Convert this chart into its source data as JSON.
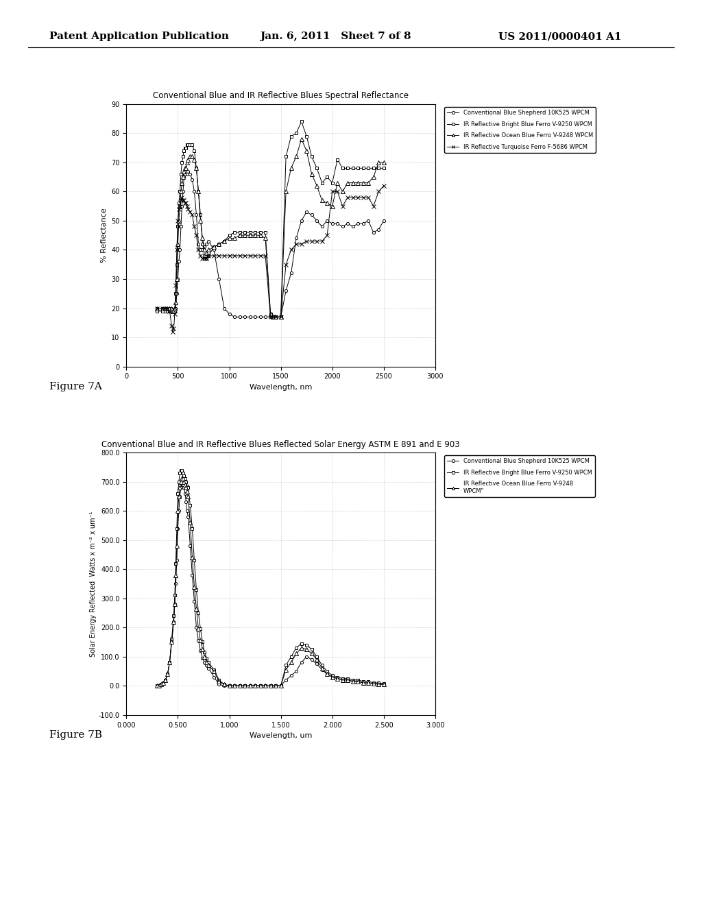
{
  "header_left": "Patent Application Publication",
  "header_center": "Jan. 6, 2011   Sheet 7 of 8",
  "header_right": "US 2011/0000401 A1",
  "fig7a": {
    "title": "Conventional Blue and IR Reflective Blues Spectral Reflectance",
    "xlabel": "Wavelength, nm",
    "ylabel": "% Reflectance",
    "xlim": [
      0,
      3000
    ],
    "ylim": [
      0,
      90
    ],
    "yticks": [
      0,
      10,
      20,
      30,
      40,
      50,
      60,
      70,
      80,
      90
    ],
    "xticks": [
      0,
      500,
      1000,
      1500,
      2000,
      2500,
      3000
    ],
    "caption": "Figure 7A",
    "series": [
      {
        "label": "Conventional Blue Shepherd 10K525 WPCM",
        "marker": "o",
        "x": [
          300,
          350,
          380,
          400,
          420,
          440,
          450,
          460,
          470,
          480,
          490,
          500,
          510,
          520,
          530,
          540,
          550,
          560,
          570,
          580,
          590,
          600,
          620,
          640,
          660,
          680,
          700,
          720,
          740,
          760,
          780,
          800,
          850,
          900,
          950,
          1000,
          1050,
          1100,
          1150,
          1200,
          1250,
          1300,
          1350,
          1400,
          1420,
          1450,
          1500,
          1550,
          1600,
          1650,
          1700,
          1750,
          1800,
          1850,
          1900,
          1950,
          2000,
          2050,
          2100,
          2150,
          2200,
          2250,
          2300,
          2350,
          2400,
          2450,
          2500
        ],
        "y": [
          20,
          20,
          19,
          19,
          20,
          20,
          19,
          19,
          20,
          20,
          25,
          30,
          36,
          40,
          48,
          55,
          60,
          65,
          66,
          67,
          66,
          67,
          66,
          64,
          60,
          52,
          42,
          40,
          40,
          41,
          42,
          43,
          40,
          30,
          20,
          18,
          17,
          17,
          17,
          17,
          17,
          17,
          17,
          17,
          17,
          17,
          17,
          26,
          32,
          44,
          50,
          53,
          52,
          50,
          48,
          50,
          49,
          49,
          48,
          49,
          48,
          49,
          49,
          50,
          46,
          47,
          50
        ]
      },
      {
        "label": "IR Reflective Bright Blue Ferro V-9250 WPCM",
        "marker": "s",
        "x": [
          300,
          350,
          380,
          400,
          420,
          440,
          450,
          460,
          470,
          480,
          490,
          500,
          510,
          520,
          530,
          540,
          550,
          560,
          570,
          580,
          590,
          600,
          620,
          640,
          660,
          680,
          700,
          720,
          740,
          760,
          780,
          800,
          850,
          900,
          950,
          1000,
          1050,
          1100,
          1150,
          1200,
          1250,
          1300,
          1350,
          1400,
          1420,
          1450,
          1500,
          1550,
          1600,
          1650,
          1700,
          1750,
          1800,
          1850,
          1900,
          1950,
          2000,
          2050,
          2100,
          2150,
          2200,
          2250,
          2300,
          2350,
          2400,
          2450,
          2500
        ],
        "y": [
          19,
          19,
          19,
          19,
          19,
          19,
          19,
          19,
          19,
          25,
          35,
          48,
          56,
          60,
          66,
          70,
          72,
          74,
          75,
          75,
          76,
          76,
          76,
          76,
          74,
          68,
          60,
          52,
          42,
          38,
          37,
          38,
          41,
          42,
          43,
          45,
          46,
          46,
          46,
          46,
          46,
          46,
          46,
          18,
          17,
          17,
          17,
          72,
          79,
          80,
          84,
          79,
          72,
          68,
          63,
          65,
          63,
          71,
          68,
          68,
          68,
          68,
          68,
          68,
          68,
          68,
          68
        ]
      },
      {
        "label": "IR Reflective Ocean Blue Ferro V-9248 WPCM",
        "marker": "^",
        "x": [
          300,
          350,
          380,
          400,
          420,
          440,
          450,
          460,
          470,
          480,
          490,
          500,
          510,
          520,
          530,
          540,
          550,
          560,
          570,
          580,
          590,
          600,
          620,
          640,
          660,
          680,
          700,
          720,
          740,
          760,
          780,
          800,
          850,
          900,
          950,
          1000,
          1050,
          1100,
          1150,
          1200,
          1250,
          1300,
          1350,
          1400,
          1420,
          1450,
          1500,
          1550,
          1600,
          1650,
          1700,
          1750,
          1800,
          1850,
          1900,
          1950,
          2000,
          2050,
          2100,
          2150,
          2200,
          2250,
          2300,
          2350,
          2400,
          2450,
          2500
        ],
        "y": [
          20,
          20,
          20,
          20,
          20,
          20,
          19,
          19,
          20,
          22,
          30,
          42,
          50,
          55,
          60,
          63,
          65,
          67,
          68,
          68,
          70,
          71,
          72,
          72,
          71,
          68,
          60,
          50,
          44,
          40,
          39,
          40,
          41,
          42,
          43,
          44,
          44,
          45,
          45,
          45,
          45,
          45,
          44,
          18,
          17,
          17,
          17,
          60,
          68,
          72,
          78,
          74,
          66,
          62,
          57,
          56,
          55,
          63,
          60,
          63,
          63,
          63,
          63,
          63,
          65,
          70,
          70
        ]
      },
      {
        "label": "IR Reflective Turquoise Ferro F-5686 WPCM",
        "marker": "x",
        "x": [
          300,
          350,
          380,
          400,
          420,
          440,
          450,
          460,
          470,
          480,
          490,
          500,
          510,
          520,
          530,
          540,
          550,
          560,
          570,
          580,
          590,
          600,
          620,
          640,
          660,
          680,
          700,
          720,
          740,
          760,
          780,
          800,
          850,
          900,
          950,
          1000,
          1050,
          1100,
          1150,
          1200,
          1250,
          1300,
          1350,
          1400,
          1420,
          1450,
          1500,
          1550,
          1600,
          1650,
          1700,
          1750,
          1800,
          1850,
          1900,
          1950,
          2000,
          2050,
          2100,
          2150,
          2200,
          2250,
          2300,
          2350,
          2400,
          2450,
          2500
        ],
        "y": [
          20,
          20,
          20,
          20,
          19,
          14,
          12,
          13,
          18,
          28,
          40,
          50,
          54,
          55,
          57,
          58,
          57,
          57,
          56,
          56,
          55,
          54,
          53,
          52,
          48,
          45,
          40,
          38,
          37,
          37,
          37,
          38,
          38,
          38,
          38,
          38,
          38,
          38,
          38,
          38,
          38,
          38,
          38,
          17,
          17,
          17,
          17,
          35,
          40,
          42,
          42,
          43,
          43,
          43,
          43,
          45,
          60,
          60,
          55,
          58,
          58,
          58,
          58,
          58,
          55,
          60,
          62
        ]
      }
    ]
  },
  "fig7b": {
    "title": "Conventional Blue and IR Reflective Blues Reflected Solar Energy ASTM E 891 and E 903",
    "xlabel": "Wavelength, um",
    "ylabel": "Solar Energy Reflected  Watts x m⁻² x um⁻¹",
    "xlim": [
      0.0,
      3.0
    ],
    "ylim": [
      -100.0,
      800.0
    ],
    "yticks": [
      -100.0,
      0.0,
      100.0,
      200.0,
      300.0,
      400.0,
      500.0,
      600.0,
      700.0,
      800.0
    ],
    "xticks": [
      0.0,
      0.5,
      1.0,
      1.5,
      2.0,
      2.5,
      3.0
    ],
    "caption": "Figure 7B",
    "series": [
      {
        "label": "Conventional Blue Shepherd 10K525 WPCM",
        "marker": "o",
        "x": [
          0.3,
          0.32,
          0.34,
          0.36,
          0.38,
          0.4,
          0.42,
          0.44,
          0.46,
          0.47,
          0.48,
          0.49,
          0.5,
          0.51,
          0.52,
          0.53,
          0.54,
          0.55,
          0.56,
          0.57,
          0.58,
          0.59,
          0.6,
          0.62,
          0.64,
          0.66,
          0.68,
          0.7,
          0.72,
          0.74,
          0.76,
          0.78,
          0.8,
          0.85,
          0.9,
          0.95,
          1.0,
          1.05,
          1.1,
          1.15,
          1.2,
          1.25,
          1.3,
          1.35,
          1.4,
          1.45,
          1.5,
          1.55,
          1.6,
          1.65,
          1.7,
          1.75,
          1.8,
          1.85,
          1.9,
          1.95,
          2.0,
          2.05,
          2.1,
          2.15,
          2.2,
          2.25,
          2.3,
          2.35,
          2.4,
          2.45,
          2.5
        ],
        "y": [
          0,
          0,
          5,
          10,
          20,
          40,
          80,
          150,
          220,
          280,
          350,
          430,
          540,
          600,
          650,
          680,
          700,
          690,
          680,
          660,
          630,
          600,
          580,
          480,
          380,
          290,
          200,
          155,
          120,
          95,
          80,
          70,
          60,
          30,
          5,
          0,
          0,
          0,
          0,
          0,
          0,
          0,
          0,
          0,
          0,
          0,
          0,
          20,
          35,
          50,
          80,
          100,
          90,
          75,
          55,
          40,
          30,
          25,
          20,
          20,
          15,
          15,
          10,
          10,
          8,
          5,
          5
        ]
      },
      {
        "label": "IR Reflective Bright Blue Ferro V-9250 WPCM",
        "marker": "s",
        "x": [
          0.3,
          0.32,
          0.34,
          0.36,
          0.38,
          0.4,
          0.42,
          0.44,
          0.46,
          0.47,
          0.48,
          0.49,
          0.5,
          0.51,
          0.52,
          0.53,
          0.54,
          0.55,
          0.56,
          0.57,
          0.58,
          0.59,
          0.6,
          0.62,
          0.64,
          0.66,
          0.68,
          0.7,
          0.72,
          0.74,
          0.76,
          0.78,
          0.8,
          0.85,
          0.9,
          0.95,
          1.0,
          1.05,
          1.1,
          1.15,
          1.2,
          1.25,
          1.3,
          1.35,
          1.4,
          1.45,
          1.5,
          1.55,
          1.6,
          1.65,
          1.7,
          1.75,
          1.8,
          1.85,
          1.9,
          1.95,
          2.0,
          2.05,
          2.1,
          2.15,
          2.2,
          2.25,
          2.3,
          2.35,
          2.4,
          2.45,
          2.5
        ],
        "y": [
          0,
          0,
          5,
          10,
          20,
          40,
          80,
          160,
          240,
          310,
          420,
          540,
          660,
          700,
          730,
          740,
          740,
          730,
          720,
          710,
          700,
          685,
          680,
          620,
          540,
          430,
          330,
          250,
          195,
          150,
          115,
          95,
          80,
          55,
          20,
          5,
          0,
          0,
          0,
          0,
          0,
          0,
          0,
          0,
          0,
          0,
          0,
          70,
          100,
          130,
          145,
          140,
          125,
          100,
          70,
          50,
          35,
          30,
          25,
          25,
          20,
          20,
          15,
          15,
          10,
          10,
          8
        ]
      },
      {
        "label": "IR Reflective Ocean Blue Ferro V-9248\nWPCM\"",
        "marker": "^",
        "x": [
          0.3,
          0.32,
          0.34,
          0.36,
          0.38,
          0.4,
          0.42,
          0.44,
          0.46,
          0.47,
          0.48,
          0.49,
          0.5,
          0.51,
          0.52,
          0.53,
          0.54,
          0.55,
          0.56,
          0.57,
          0.58,
          0.59,
          0.6,
          0.62,
          0.64,
          0.66,
          0.68,
          0.7,
          0.72,
          0.74,
          0.76,
          0.78,
          0.8,
          0.85,
          0.9,
          0.95,
          1.0,
          1.05,
          1.1,
          1.15,
          1.2,
          1.25,
          1.3,
          1.35,
          1.4,
          1.45,
          1.5,
          1.55,
          1.6,
          1.65,
          1.7,
          1.75,
          1.8,
          1.85,
          1.9,
          1.95,
          2.0,
          2.05,
          2.1,
          2.15,
          2.2,
          2.25,
          2.3,
          2.35,
          2.4,
          2.45,
          2.5
        ],
        "y": [
          0,
          0,
          5,
          10,
          20,
          40,
          80,
          150,
          220,
          280,
          380,
          480,
          600,
          650,
          680,
          700,
          710,
          710,
          700,
          690,
          680,
          665,
          650,
          560,
          440,
          340,
          265,
          195,
          155,
          125,
          100,
          80,
          70,
          50,
          15,
          5,
          0,
          0,
          0,
          0,
          0,
          0,
          0,
          0,
          0,
          0,
          0,
          55,
          80,
          110,
          130,
          125,
          110,
          90,
          60,
          40,
          30,
          25,
          20,
          20,
          15,
          15,
          10,
          10,
          8,
          5,
          5
        ]
      }
    ]
  }
}
